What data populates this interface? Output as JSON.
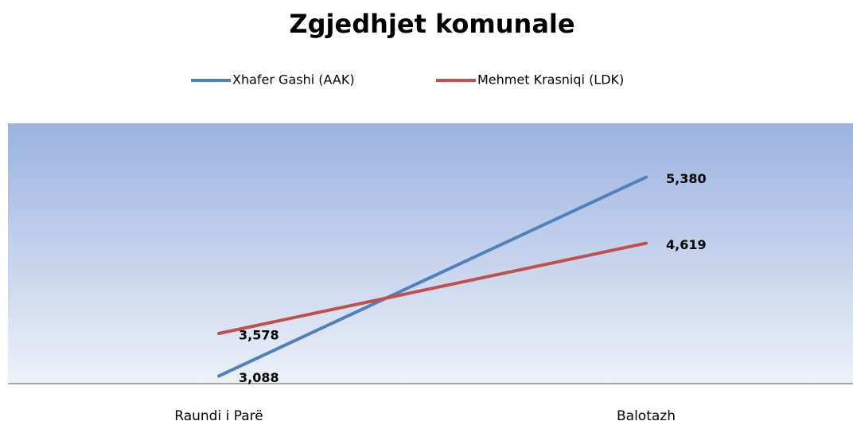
{
  "chart_data": {
    "type": "line",
    "title": "Zgjedhjet komunale",
    "categories": [
      "Raundi i Parë",
      "Balotazh"
    ],
    "series": [
      {
        "name": "Xhafer Gashi (AAK)",
        "color": "#4f81bd",
        "values": [
          3088,
          5380
        ],
        "value_labels": [
          "3,088",
          "5,380"
        ]
      },
      {
        "name": "Mehmet Krasniqi (LDK)",
        "color": "#c0504d",
        "values": [
          3578,
          4619
        ],
        "value_labels": [
          "3,578",
          "4,619"
        ]
      }
    ],
    "ylim": [
      3000,
      6000
    ],
    "legend": "top"
  }
}
